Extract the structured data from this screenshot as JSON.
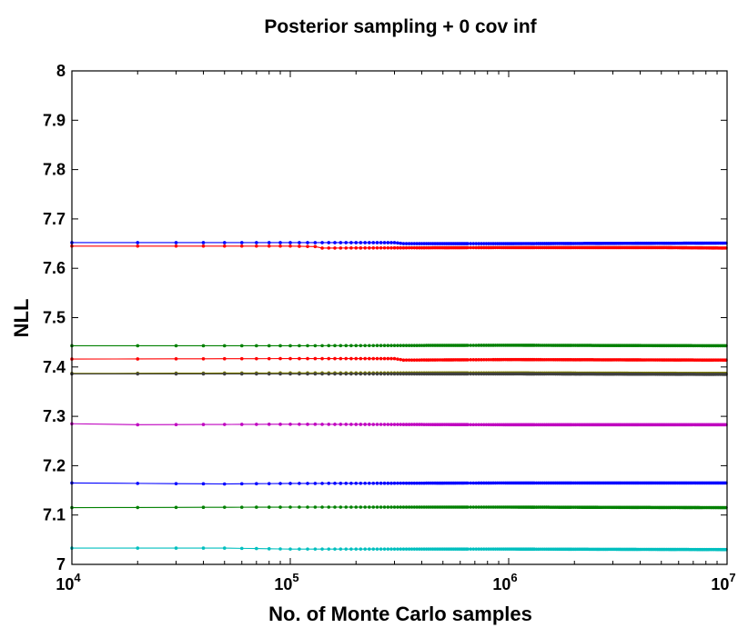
{
  "chart_data": {
    "type": "line",
    "title": "Posterior sampling + 0 cov inf",
    "xlabel": "No. of Monte Carlo samples",
    "ylabel": "NLL",
    "xscale": "log",
    "xlim": [
      10000,
      10000000
    ],
    "ylim": [
      7.0,
      8.0
    ],
    "grid": false,
    "legend": "none",
    "x_ticks": [
      {
        "value": 10000,
        "base": "10",
        "exp": "4"
      },
      {
        "value": 100000,
        "base": "10",
        "exp": "5"
      },
      {
        "value": 1000000,
        "base": "10",
        "exp": "6"
      },
      {
        "value": 10000000,
        "base": "10",
        "exp": "7"
      }
    ],
    "y_ticks": [
      "7",
      "7.1",
      "7.2",
      "7.3",
      "7.4",
      "7.5",
      "7.6",
      "7.7",
      "7.8",
      "7.9",
      "8"
    ],
    "x_sampling": "every 10000 samples from 10000 to 10000000",
    "series": [
      {
        "color": "#0000ff",
        "x": [
          10000,
          100000,
          200000,
          300000,
          330000,
          1000000,
          10000000
        ],
        "values": [
          7.652,
          7.652,
          7.652,
          7.652,
          7.65,
          7.65,
          7.651
        ]
      },
      {
        "color": "#ff0000",
        "x": [
          10000,
          100000,
          130000,
          140000,
          1000000,
          5000000,
          10000000
        ],
        "values": [
          7.645,
          7.645,
          7.644,
          7.641,
          7.642,
          7.642,
          7.641
        ]
      },
      {
        "color": "#008000",
        "x": [
          10000,
          100000,
          1000000,
          10000000
        ],
        "values": [
          7.443,
          7.443,
          7.444,
          7.443
        ]
      },
      {
        "color": "#ff0000",
        "x": [
          10000,
          100000,
          300000,
          330000,
          1000000,
          10000000
        ],
        "values": [
          7.416,
          7.417,
          7.417,
          7.414,
          7.415,
          7.414
        ]
      },
      {
        "color": "#808000",
        "x": [
          10000,
          100000,
          1000000,
          10000000
        ],
        "values": [
          7.387,
          7.388,
          7.388,
          7.387
        ]
      },
      {
        "color": "#404040",
        "x": [
          10000,
          100000,
          1000000,
          10000000
        ],
        "values": [
          7.386,
          7.386,
          7.386,
          7.385
        ]
      },
      {
        "color": "#bf00bf",
        "x": [
          10000,
          20000,
          100000,
          1000000,
          10000000
        ],
        "values": [
          7.285,
          7.283,
          7.284,
          7.283,
          7.283
        ]
      },
      {
        "color": "#0000ff",
        "x": [
          10000,
          50000,
          100000,
          1000000,
          10000000
        ],
        "values": [
          7.165,
          7.163,
          7.164,
          7.165,
          7.165
        ]
      },
      {
        "color": "#008000",
        "x": [
          10000,
          100000,
          1000000,
          10000000
        ],
        "values": [
          7.115,
          7.116,
          7.116,
          7.115
        ]
      },
      {
        "color": "#00bfbf",
        "x": [
          10000,
          50000,
          100000,
          1000000,
          10000000
        ],
        "values": [
          7.033,
          7.033,
          7.031,
          7.031,
          7.03
        ]
      }
    ]
  }
}
